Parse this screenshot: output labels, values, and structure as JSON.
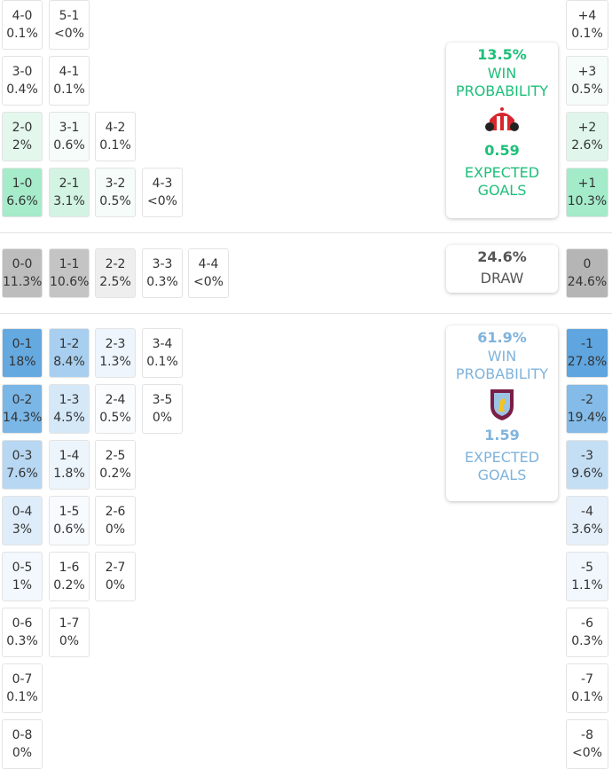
{
  "home": {
    "rows": [
      [
        {
          "score": "4-0",
          "prob": "0.1%",
          "color": "#ffffff"
        },
        {
          "score": "5-1",
          "prob": "<0%",
          "color": "#ffffff"
        }
      ],
      [
        {
          "score": "3-0",
          "prob": "0.4%",
          "color": "#ffffff"
        },
        {
          "score": "4-1",
          "prob": "0.1%",
          "color": "#ffffff"
        }
      ],
      [
        {
          "score": "2-0",
          "prob": "2%",
          "color": "#e3f7ed"
        },
        {
          "score": "3-1",
          "prob": "0.6%",
          "color": "#f6fcf9"
        },
        {
          "score": "4-2",
          "prob": "0.1%",
          "color": "#ffffff"
        }
      ],
      [
        {
          "score": "1-0",
          "prob": "6.6%",
          "color": "#a6ebca"
        },
        {
          "score": "2-1",
          "prob": "3.1%",
          "color": "#d3f3e3"
        },
        {
          "score": "3-2",
          "prob": "0.5%",
          "color": "#f6fcf9"
        },
        {
          "score": "4-3",
          "prob": "<0%",
          "color": "#ffffff"
        }
      ]
    ]
  },
  "draw": {
    "rows": [
      [
        {
          "score": "0-0",
          "prob": "11.3%",
          "color": "#bdbdbd"
        },
        {
          "score": "1-1",
          "prob": "10.6%",
          "color": "#c4c4c4"
        },
        {
          "score": "2-2",
          "prob": "2.5%",
          "color": "#eeeeee"
        },
        {
          "score": "3-3",
          "prob": "0.3%",
          "color": "#ffffff"
        },
        {
          "score": "4-4",
          "prob": "<0%",
          "color": "#ffffff"
        }
      ]
    ]
  },
  "away": {
    "rows": [
      [
        {
          "score": "0-1",
          "prob": "18%",
          "color": "#65a9e1"
        },
        {
          "score": "1-2",
          "prob": "8.4%",
          "color": "#a8cfef"
        },
        {
          "score": "2-3",
          "prob": "1.3%",
          "color": "#eef5fc"
        },
        {
          "score": "3-4",
          "prob": "0.1%",
          "color": "#ffffff"
        }
      ],
      [
        {
          "score": "0-2",
          "prob": "14.3%",
          "color": "#7ab6e6"
        },
        {
          "score": "1-3",
          "prob": "4.5%",
          "color": "#d5e8f8"
        },
        {
          "score": "2-4",
          "prob": "0.5%",
          "color": "#fafcfe"
        },
        {
          "score": "3-5",
          "prob": "0%",
          "color": "#ffffff"
        }
      ],
      [
        {
          "score": "0-3",
          "prob": "7.6%",
          "color": "#b7d7f2"
        },
        {
          "score": "1-4",
          "prob": "1.8%",
          "color": "#edf5fc"
        },
        {
          "score": "2-5",
          "prob": "0.2%",
          "color": "#ffffff"
        }
      ],
      [
        {
          "score": "0-4",
          "prob": "3%",
          "color": "#deedf9"
        },
        {
          "score": "1-5",
          "prob": "0.6%",
          "color": "#f8fbfe"
        },
        {
          "score": "2-6",
          "prob": "0%",
          "color": "#ffffff"
        }
      ],
      [
        {
          "score": "0-5",
          "prob": "1%",
          "color": "#f2f8fd"
        },
        {
          "score": "1-6",
          "prob": "0.2%",
          "color": "#ffffff"
        },
        {
          "score": "2-7",
          "prob": "0%",
          "color": "#ffffff"
        }
      ],
      [
        {
          "score": "0-6",
          "prob": "0.3%",
          "color": "#ffffff"
        },
        {
          "score": "1-7",
          "prob": "0%",
          "color": "#ffffff"
        }
      ],
      [
        {
          "score": "0-7",
          "prob": "0.1%",
          "color": "#ffffff"
        }
      ],
      [
        {
          "score": "0-8",
          "prob": "0%",
          "color": "#ffffff"
        }
      ]
    ]
  },
  "goal_diff": {
    "home": [
      {
        "diff": "+4",
        "prob": "0.1%",
        "color": "#ffffff"
      },
      {
        "diff": "+3",
        "prob": "0.5%",
        "color": "#f6fcf9"
      },
      {
        "diff": "+2",
        "prob": "2.6%",
        "color": "#e0f6ec"
      },
      {
        "diff": "+1",
        "prob": "10.3%",
        "color": "#a3ebc9"
      }
    ],
    "draw": [
      {
        "diff": "0",
        "prob": "24.6%",
        "color": "#b5b5b5"
      }
    ],
    "away": [
      {
        "diff": "-1",
        "prob": "27.8%",
        "color": "#5fa5df"
      },
      {
        "diff": "-2",
        "prob": "19.4%",
        "color": "#84bbe8"
      },
      {
        "diff": "-3",
        "prob": "9.6%",
        "color": "#c4def4"
      },
      {
        "diff": "-4",
        "prob": "3.6%",
        "color": "#e5f0fa"
      },
      {
        "diff": "-5",
        "prob": "1.1%",
        "color": "#f1f7fc"
      },
      {
        "diff": "-6",
        "prob": "0.3%",
        "color": "#ffffff"
      },
      {
        "diff": "-7",
        "prob": "0.1%",
        "color": "#ffffff"
      },
      {
        "diff": "-8",
        "prob": "<0%",
        "color": "#ffffff"
      }
    ]
  },
  "cards": {
    "home": {
      "win_prob": "13.5%",
      "win_label": "WIN PROBABILITY",
      "xg": "0.59",
      "xg_label": "EXPECTED GOALS",
      "color": "#1dbf79"
    },
    "draw": {
      "prob": "24.6%",
      "label": "DRAW"
    },
    "away": {
      "win_prob": "61.9%",
      "win_label": "WIN PROBABILITY",
      "xg": "1.59",
      "xg_label": "EXPECTED GOALS",
      "color": "#7fb3dc"
    }
  }
}
